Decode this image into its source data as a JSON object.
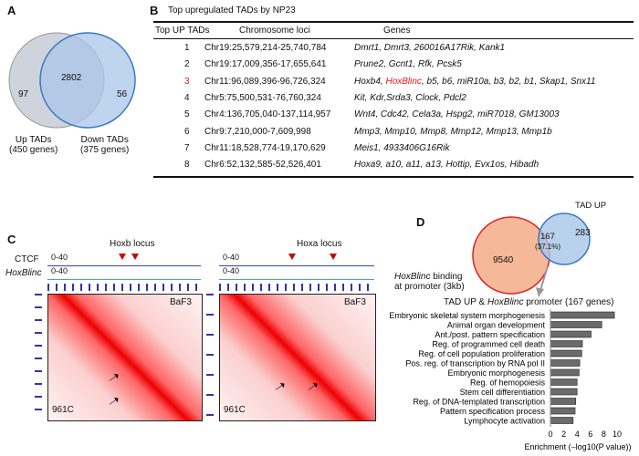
{
  "panel_a": {
    "label": "A",
    "only_up": "97",
    "overlap": "2802",
    "only_down": "56",
    "up_label": "Up TADs",
    "up_genes": "(450 genes)",
    "down_label": "Down TADs",
    "down_genes": "(375 genes)"
  },
  "panel_b": {
    "label": "B",
    "title": "Top upregulated TADs by NP23",
    "headers": [
      "Top UP TADs",
      "Chromosome loci",
      "Genes"
    ],
    "rows": [
      {
        "rank": "1",
        "loci": "Chr19:25,579,214-25,740,784",
        "genes": "Dmrt1, Dmrt3, 260016A17Rik, Kank1"
      },
      {
        "rank": "2",
        "loci": "Chr19:17,009,356-17,655,641",
        "genes": "Prune2, Gcnt1, Rfk, Pcsk5"
      },
      {
        "rank": "3",
        "loci": "Chr11:96,089,396-96,726,324",
        "genes_pre": "Hoxb4, ",
        "genes_hl": "HoxBlinc",
        "genes_post": ", b5, b6, miR10a, b3, b2, b1, Skap1, Snx11",
        "highlight": true
      },
      {
        "rank": "4",
        "loci": "Chr5:75,500,531-76,760,324",
        "genes": "Kit, Kdr,Srda3, Clock, Pdcl2"
      },
      {
        "rank": "5",
        "loci": "Chr4:136,705,040-137,114,957",
        "genes": "Wnt4, Cdc42, Cela3a, Hspg2, miR7018, GM13003"
      },
      {
        "rank": "6",
        "loci": "Chr9:7,210,000-7,609,998",
        "genes": "Mmp3, Mmp10, Mmp8, Mmp12, Mmp13, Mmp1b"
      },
      {
        "rank": "7",
        "loci": "Chr11:18,528,774-19,170,629",
        "genes": "Meis1, 4933406G16Rik"
      },
      {
        "rank": "8",
        "loci": "Chr6:52,132,585-52,526,401",
        "genes": "Hoxa9, a10, a11, a13, Hottip, Evx1os, Hibadh"
      }
    ],
    "highlight_color": "#e8141b"
  },
  "panel_c": {
    "label": "C",
    "track_ctcf": "CTCF",
    "track_hoxblinc": "HoxBlinc",
    "range": "0-40",
    "left": {
      "title": "Hoxb locus",
      "top_label": "BaF3",
      "bottom_label": "961C"
    },
    "right": {
      "title": "Hoxa locus",
      "top_label": "BaF3",
      "bottom_label": "961C"
    }
  },
  "panel_d": {
    "label": "D",
    "tad_up": "TAD UP",
    "only_tad": "283",
    "overlap": "167",
    "overlap_pct": "(37.1%)",
    "only_binding": "9540",
    "binding_label_it": "HoxBlinc",
    "binding_label": " binding",
    "binding_label2": "at promoter (3kb)",
    "colors": {
      "binding": "#f5b999",
      "binding_edge": "#e0202a",
      "tad": "#a9c6e8",
      "tad_edge": "#3a78c2"
    }
  },
  "chart_data": {
    "type": "bar",
    "orientation": "horizontal",
    "title_pre": "TAD UP & ",
    "title_it": "HoxBlinc",
    "title_post": " promoter (167 genes)",
    "xlabel": "Enrichment (–log10(P value))",
    "xlim": [
      0,
      10
    ],
    "xticks": [
      "0",
      "2",
      "4",
      "6",
      "8",
      "10"
    ],
    "categories": [
      "Embryonic skeletal system morphogenesis",
      "Animal organ development",
      "Ant./post. pattern specification",
      "Reg. of programmed cell death",
      "Reg. of cell population proliferation",
      "Pos. reg. of transcription by RNA pol II",
      "Embryonic morphogenesis",
      "Reg. of hemopoiesis",
      "Stem cell differentiation",
      "Reg. of DNA-templated transcription",
      "Pattern specification process",
      "Lymphocyte activation"
    ],
    "values": [
      9.6,
      7.7,
      6.1,
      4.8,
      4.7,
      4.4,
      4.3,
      4.0,
      4.0,
      3.8,
      3.7,
      3.4
    ],
    "bar_color": "#6b6b6b"
  }
}
